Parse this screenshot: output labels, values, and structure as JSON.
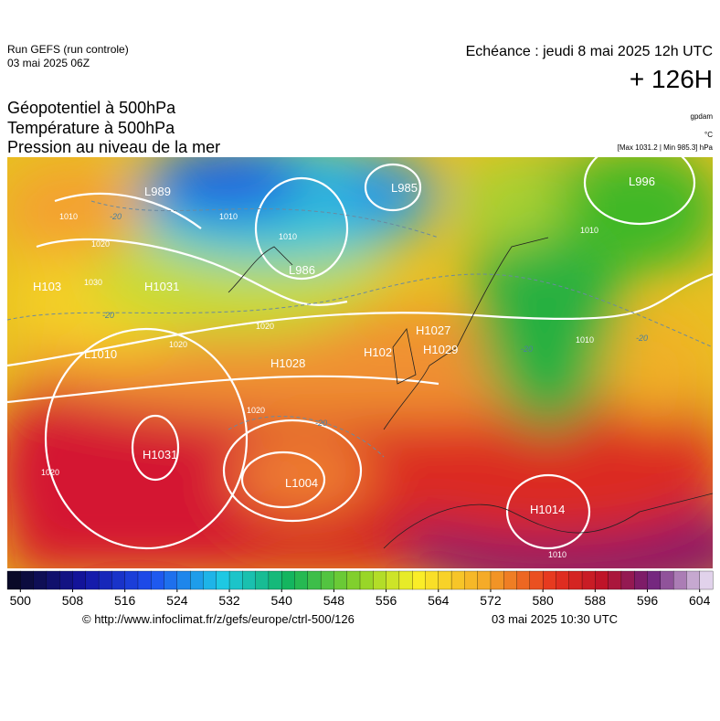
{
  "header": {
    "run": "Run GEFS (run controle)",
    "run_date": "03 mai 2025 06Z",
    "valid": "Echéance : jeudi 8 mai 2025 12h UTC",
    "lead": "+ 126H"
  },
  "titles": [
    "Géopotentiel à 500hPa",
    "Température à 500hPa",
    "Pression au niveau de la mer"
  ],
  "units": {
    "geopotential": "gpdam",
    "temperature": "°C",
    "pressure": "[Max 1031.2 | Min 985.3] hPa"
  },
  "map_labels": [
    "L989",
    "L985",
    "L996",
    "L986",
    "H103",
    "H1031",
    "L1010",
    "H1028",
    "H102",
    "H1027",
    "H1029",
    "H1031",
    "L1004",
    "H1014",
    "1010",
    "1020",
    "1030",
    "1020",
    "1020",
    "1010",
    "1010",
    "1010",
    "1020",
    "1020",
    "1010",
    "1010",
    "-20",
    "-20",
    "-20",
    "-20",
    "-20"
  ],
  "colorbar": {
    "lim": [
      498,
      606
    ],
    "ticks": [
      500,
      508,
      516,
      524,
      532,
      540,
      548,
      556,
      564,
      572,
      580,
      588,
      596,
      604
    ]
  },
  "footer": {
    "source": "© http://www.infoclimat.fr/z/gefs/europe/ctrl-500/126",
    "issued": "03 mai 2025 10:30 UTC"
  }
}
